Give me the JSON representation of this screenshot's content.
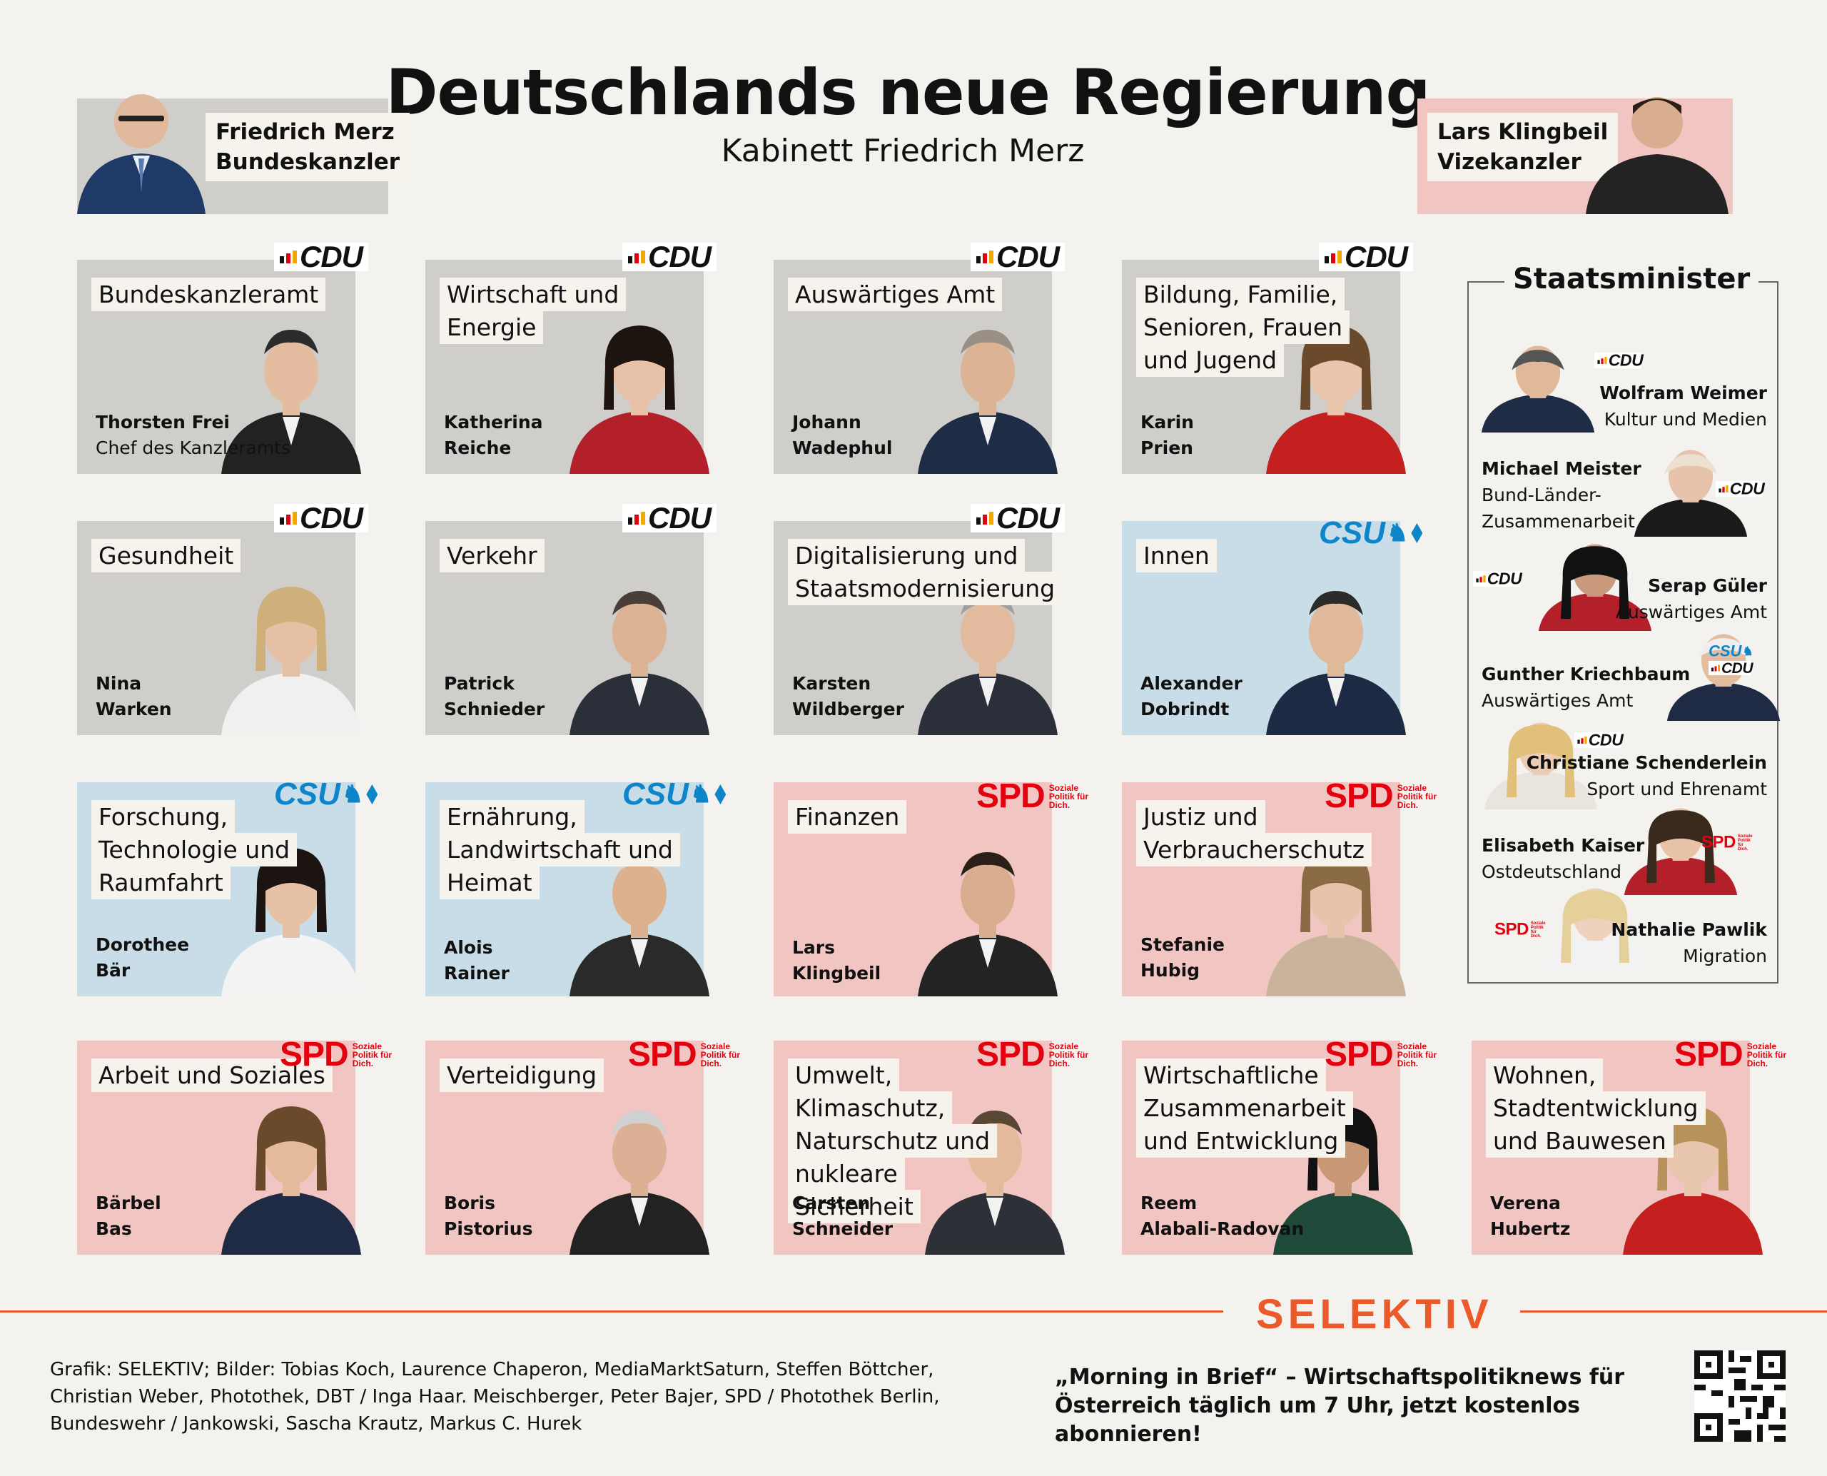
{
  "header": {
    "title": "Deutschlands neue Regierung",
    "subtitle": "Kabinett Friedrich Merz"
  },
  "leaders": {
    "left": {
      "name": "Friedrich Merz",
      "role": "Bundeskanzler"
    },
    "right": {
      "name": "Lars Klingbeil",
      "role": "Vizekanzler"
    }
  },
  "ministries": [
    {
      "title": "Bundeskanzleramt",
      "name1": "Thorsten Frei",
      "name2": "Chef des Kanzleramts",
      "party": "CDU"
    },
    {
      "title": "Wirtschaft und Energie",
      "name1": "Katherina",
      "name2": "Reiche",
      "party": "CDU"
    },
    {
      "title": "Auswärtiges Amt",
      "name1": "Johann",
      "name2": "Wadephul",
      "party": "CDU"
    },
    {
      "title": "Bildung, Familie, Senioren, Frauen und Jugend",
      "name1": "Karin",
      "name2": "Prien",
      "party": "CDU"
    },
    {
      "title": "Gesundheit",
      "name1": "Nina",
      "name2": "Warken",
      "party": "CDU"
    },
    {
      "title": "Verkehr",
      "name1": "Patrick",
      "name2": "Schnieder",
      "party": "CDU"
    },
    {
      "title": "Digitalisierung und Staatsmodernisierung",
      "name1": "Karsten",
      "name2": "Wildberger",
      "party": "CDU"
    },
    {
      "title": "Innen",
      "name1": "Alexander",
      "name2": "Dobrindt",
      "party": "CSU"
    },
    {
      "title": "Forschung, Technologie und Raumfahrt",
      "name1": "Dorothee",
      "name2": "Bär",
      "party": "CSU"
    },
    {
      "title": "Ernährung, Landwirtschaft und Heimat",
      "name1": "Alois",
      "name2": "Rainer",
      "party": "CSU"
    },
    {
      "title": "Finanzen",
      "name1": "Lars",
      "name2": "Klingbeil",
      "party": "SPD"
    },
    {
      "title": "Justiz und Verbraucherschutz",
      "name1": "Stefanie",
      "name2": "Hubig",
      "party": "SPD"
    },
    {
      "title": "Arbeit und Soziales",
      "name1": "Bärbel",
      "name2": "Bas",
      "party": "SPD"
    },
    {
      "title": "Verteidigung",
      "name1": "Boris",
      "name2": "Pistorius",
      "party": "SPD"
    },
    {
      "title": "Umwelt, Klimaschutz, Naturschutz und nukleare Sicherheit",
      "name1": "Carsten",
      "name2": "Schneider",
      "party": "SPD"
    },
    {
      "title": "Wirtschaftliche Zusammenarbeit und Entwicklung",
      "name1": "Reem",
      "name2": "Alabali-Radovan",
      "party": "SPD"
    },
    {
      "title": "Wohnen, Stadtentwicklung und Bauwesen",
      "name1": "Verena",
      "name2": "Hubertz",
      "party": "SPD"
    }
  ],
  "logos": {
    "cdu": "CDU",
    "csu": "CSU",
    "spd": "SPD",
    "spd_tagline": "Soziale Politik für Dich."
  },
  "staatsminister": {
    "heading": "Staatsminister",
    "entries": [
      {
        "name": "Wolfram Weimer",
        "role": "Kultur und Medien",
        "party": "CDU"
      },
      {
        "name": "Michael Meister",
        "role_line1": "Bund-Länder-",
        "role_line2": "Zusammenarbeit",
        "party": "CDU"
      },
      {
        "name": "Serap Güler",
        "role": "Auswärtiges Amt",
        "party": "CDU"
      },
      {
        "name": "Gunther Kriechbaum",
        "role": "Auswärtiges Amt",
        "party": "CSU / CDU"
      },
      {
        "name": "Christiane Schenderlein",
        "role": "Sport und Ehrenamt",
        "party": "CDU"
      },
      {
        "name": "Elisabeth Kaiser",
        "role": "Ostdeutschland",
        "party": "SPD"
      },
      {
        "name": "Nathalie Pawlik",
        "role": "Migration",
        "party": "SPD"
      }
    ]
  },
  "footer": {
    "brand": "SELEKTIV",
    "credits": "Grafik: SELEKTIV; Bilder: Tobias Koch, Laurence Chaperon, MediaMarktSaturn, Steffen Böttcher, Christian Weber, Photothek, DBT / Inga Haar. Meischberger, Peter Bajer, SPD / Photothek Berlin, Bundeswehr / Jankowski, Sascha Krautz, Markus C. Hurek",
    "promo": "„Morning in Brief“ – Wirtschaftspolitiknews für Österreich täglich um 7 Uhr, jetzt kostenlos abonnieren!"
  },
  "colors": {
    "cdu_card": "#cfcecb",
    "csu_card": "#c9dde8",
    "spd_card": "#f1c6c2",
    "brand": "#ea5a2b",
    "spd_red": "#e3000f",
    "csu_blue": "#0e84c9"
  }
}
